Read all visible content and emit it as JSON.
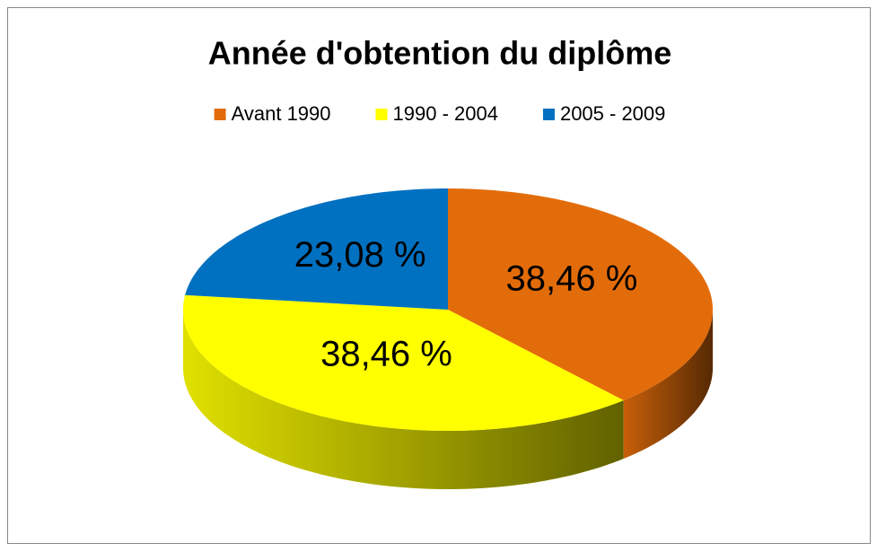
{
  "chart_data": {
    "type": "pie",
    "title": "Année d'obtention du diplôme",
    "categories": [
      "Avant 1990",
      "1990 - 2004",
      "2005 - 2009"
    ],
    "values": [
      38.46,
      38.46,
      23.08
    ],
    "value_labels": [
      "38,46 %",
      "38,46 %",
      "23,08 %"
    ],
    "colors": [
      "#E36C0A",
      "#FFFF00",
      "#0070C0"
    ],
    "legend": "top"
  }
}
